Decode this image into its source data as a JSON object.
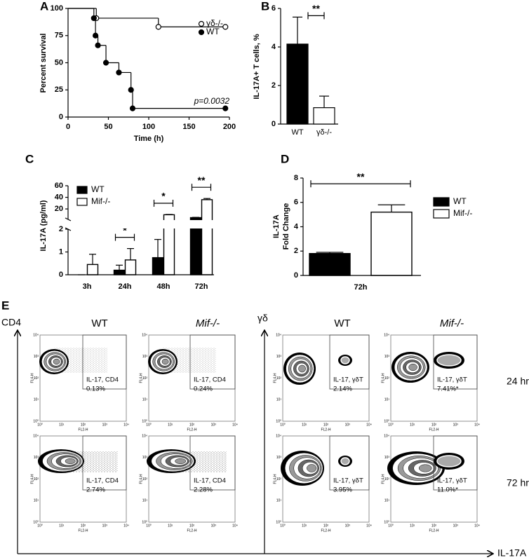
{
  "chart_data": [
    {
      "type": "step",
      "panel_label": "A",
      "xlabel": "Time (h)",
      "ylabel": "Percent survival",
      "xlim": [
        0,
        200
      ],
      "ylim": [
        0,
        100
      ],
      "xticks": [
        0,
        50,
        100,
        150,
        200
      ],
      "yticks": [
        0,
        25,
        50,
        75,
        100
      ],
      "series": [
        {
          "name": "γδ-/-",
          "color": "#000000",
          "marker": "open",
          "x": [
            0,
            35,
            112,
            195
          ],
          "values": [
            100,
            91,
            83,
            83
          ]
        },
        {
          "name": "WT",
          "color": "#000000",
          "marker": "filled",
          "x": [
            0,
            32,
            34,
            37,
            47,
            63,
            78,
            80,
            195
          ],
          "values": [
            100,
            91,
            75,
            66,
            50,
            41,
            25,
            8,
            8
          ]
        }
      ],
      "annotation": "p=0.0032",
      "legend": "upper right"
    },
    {
      "type": "bar",
      "panel_label": "B",
      "ylabel": "IL-17A+ T cells, %",
      "categories": [
        "WT",
        "γδ-/-"
      ],
      "values": [
        4.15,
        0.85
      ],
      "errors": [
        1.4,
        0.6
      ],
      "colors": [
        "#000000",
        "#ffffff"
      ],
      "ylim": [
        0,
        6
      ],
      "yticks": [
        0,
        2,
        4,
        6
      ],
      "significance": "**"
    },
    {
      "type": "grouped_bar",
      "panel_label": "C",
      "ylabel": [
        "IL-17A (pg/ml)"
      ],
      "categories": [
        "3h",
        "24h",
        "48h",
        "72h"
      ],
      "series": [
        {
          "name": "WT",
          "color": "#000000",
          "values": [
            0,
            0.2,
            0.75,
            5
          ],
          "errors": [
            0,
            0.22,
            0.8,
            0.5
          ]
        },
        {
          "name": "Mif-/-",
          "color": "#ffffff",
          "values": [
            0.45,
            0.65,
            10,
            36
          ],
          "errors": [
            0.45,
            0.5,
            0.5,
            2
          ]
        }
      ],
      "ylim": [
        0,
        60
      ],
      "y_break": 2,
      "yticks": [
        0,
        1,
        2,
        20,
        40,
        60
      ],
      "significance": [
        null,
        "*",
        "*",
        "**"
      ],
      "legend": "upper left"
    },
    {
      "type": "grouped_bar",
      "panel_label": "D",
      "ylabel": [
        "IL-17A",
        "Fold Change"
      ],
      "categories": [
        "72h"
      ],
      "series": [
        {
          "name": "WT",
          "color": "#000000",
          "values": [
            1.8
          ],
          "errors": [
            0.1
          ]
        },
        {
          "name": "Mif-/-",
          "color": "#ffffff",
          "values": [
            5.2
          ],
          "errors": [
            0.6
          ]
        }
      ],
      "ylim": [
        0,
        8
      ],
      "yticks": [
        0,
        2,
        4,
        6,
        8
      ],
      "significance": [
        "**"
      ],
      "legend": "right"
    }
  ],
  "flow_panel": {
    "panel_label": "E",
    "y_axis_labels": [
      "CD4",
      "γδ"
    ],
    "x_axis_label": "IL-17A",
    "columns": [
      "WT",
      "Mif-/-",
      "WT",
      "Mif-/-"
    ],
    "rows": [
      "24 hrs",
      "72 hrs"
    ],
    "plot_x_label": "FL2-H",
    "plot_y_label": "FL4-H",
    "plot_ticks": [
      "10⁰",
      "10¹",
      "10²",
      "10³",
      "10⁴"
    ],
    "gates": [
      [
        {
          "name": "IL-17, CD4",
          "percent": "0.13%"
        },
        {
          "name": "IL-17, CD4",
          "percent": "0.24%"
        },
        {
          "name": "IL-17, γδT",
          "percent": "2.14%"
        },
        {
          "name": "IL-17, γδT",
          "percent": "7.41%*"
        }
      ],
      [
        {
          "name": "IL-17, CD4",
          "percent": "2.74%"
        },
        {
          "name": "IL-17, CD4",
          "percent": "2.28%"
        },
        {
          "name": "IL-17, γδT",
          "percent": "3.95%"
        },
        {
          "name": "IL-17, γδT",
          "percent": "11.0%*"
        }
      ]
    ]
  }
}
